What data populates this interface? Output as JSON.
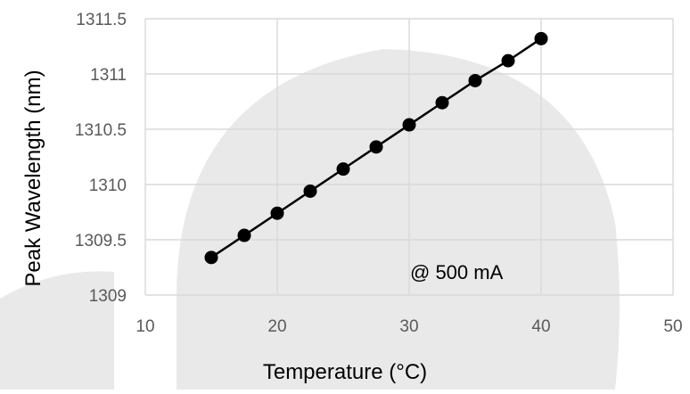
{
  "chart_data": {
    "type": "scatter",
    "title": "",
    "xlabel": "Temperature (°C)",
    "ylabel": "Peak Wavelength (nm)",
    "xlim": [
      10,
      50
    ],
    "ylim": [
      1309,
      1311.5
    ],
    "x_ticks": [
      "10",
      "20",
      "30",
      "40",
      "50"
    ],
    "y_ticks": [
      "1309",
      "1309.5",
      "1310",
      "1310.5",
      "1311",
      "1311.5"
    ],
    "grid": true,
    "annotation": "@ 500 mA",
    "series": [
      {
        "x": [
          15,
          17.5,
          20,
          22.5,
          25,
          27.5,
          30,
          32.5,
          35,
          37.5,
          40
        ],
        "y": [
          1309.34,
          1309.54,
          1309.74,
          1309.94,
          1310.14,
          1310.34,
          1310.54,
          1310.74,
          1310.94,
          1311.12,
          1311.32
        ],
        "color": "#000000",
        "line": true
      }
    ],
    "background_shape_color": "#e9e9e9",
    "grid_color": "#d9d9d9"
  }
}
